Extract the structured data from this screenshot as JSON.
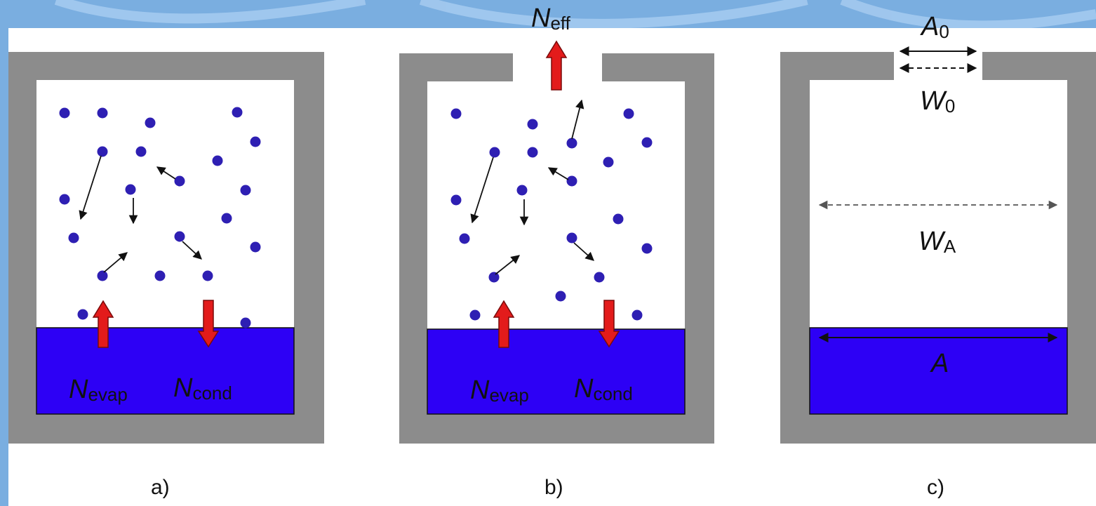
{
  "colors": {
    "background_border": "#7aaee0",
    "panel": "#ffffff",
    "wall": "#8c8c8c",
    "liquid": "#2d00f5",
    "molecule": "#2e1fb3",
    "flux_arrow": "#e31b1b"
  },
  "panel_a": {
    "caption": "a)",
    "n_evap": {
      "main": "N",
      "sub": "evap"
    },
    "n_cond": {
      "main": "N",
      "sub": "cond"
    }
  },
  "panel_b": {
    "caption": "b)",
    "n_eff": {
      "main": "N",
      "sub": "eff"
    },
    "n_evap": {
      "main": "N",
      "sub": "evap"
    },
    "n_cond": {
      "main": "N",
      "sub": "cond"
    }
  },
  "panel_c": {
    "caption": "c)",
    "a0": {
      "main": "A",
      "sub": "0"
    },
    "w0": {
      "main": "W",
      "sub": "0"
    },
    "wa": {
      "main": "W",
      "sub": "A"
    },
    "a": {
      "main": "A"
    }
  }
}
